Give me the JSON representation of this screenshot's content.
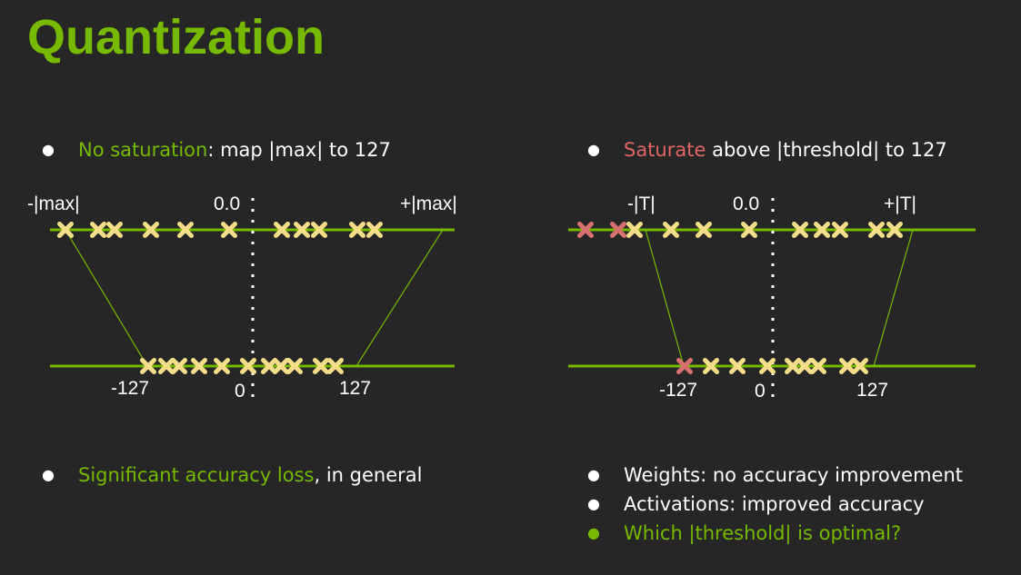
{
  "title": "Quantization",
  "left": {
    "bullet_top": {
      "highlight": "No saturation",
      "rest": ": map |max| to 127"
    },
    "labels": {
      "neg": "-|max|",
      "zero": "0.0",
      "pos": "+|max|",
      "q_neg": "-127",
      "q_zero": "0",
      "q_pos": "127"
    },
    "bullet_bottom": {
      "highlight": "Significant accuracy loss",
      "rest": ", in general"
    }
  },
  "right": {
    "bullet_top": {
      "highlight": "Saturate",
      "rest": " above |threshold| to 127"
    },
    "labels": {
      "neg": "-|T|",
      "zero": "0.0",
      "pos": "+|T|",
      "q_neg": "-127",
      "q_zero": "0",
      "q_pos": "127"
    },
    "bullets_bottom": [
      {
        "text": "Weights: no accuracy improvement",
        "color": "white"
      },
      {
        "text": "Activations: improved accuracy",
        "color": "white"
      },
      {
        "text": "Which |threshold| is optimal?",
        "color": "green"
      }
    ]
  },
  "colors": {
    "accent": "#76b900",
    "marker": "#f5dd8a",
    "saturated_marker": "#d97070",
    "background": "#262626"
  },
  "bullet_glyph": "●"
}
